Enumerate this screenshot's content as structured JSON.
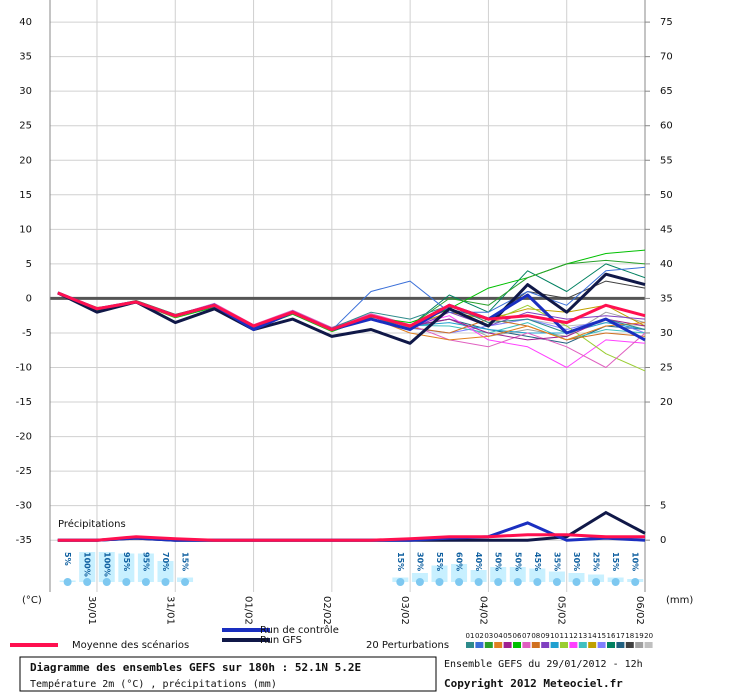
{
  "chart_data": {
    "type": "line",
    "title": "Diagramme des ensembles GEFS sur 180h : 52.1N 5.2E",
    "subtitle": "Température 2m (°C) , précipitations (mm)",
    "run_label": "Ensemble GEFS du 29/01/2012 - 12h",
    "copyright": "Copyright 2012 Meteociel.fr",
    "precip_label": "Précipitations",
    "y_label": "(°C)",
    "y2_label": "(mm)",
    "perturbations_label": "20 Perturbations",
    "x": [
      -0.5,
      0,
      0.5,
      1,
      1.5,
      2,
      2.5,
      3,
      3.5,
      4,
      4.5,
      5,
      5.5,
      6,
      6.5,
      7
    ],
    "xlim": [
      -0.6,
      7
    ],
    "xticks": [
      {
        "value": 0,
        "label": "30/01"
      },
      {
        "value": 1,
        "label": "31/01"
      },
      {
        "value": 2,
        "label": "01/02"
      },
      {
        "value": 3,
        "label": "02/02"
      },
      {
        "value": 4,
        "label": "03/02"
      },
      {
        "value": 5,
        "label": "04/02"
      },
      {
        "value": 6,
        "label": "05/02"
      },
      {
        "value": 7,
        "label": "06/02"
      }
    ],
    "ylim": [
      -42.5,
      43.2
    ],
    "yticks": [
      40,
      35,
      30,
      25,
      20,
      15,
      10,
      5,
      0,
      -5,
      -10,
      -15,
      -20,
      -25,
      -30,
      -35
    ],
    "y2lim": [
      -7.5,
      78.2
    ],
    "y2ticks": [
      75,
      70,
      65,
      60,
      55,
      50,
      45,
      40,
      35,
      30,
      25,
      20,
      5,
      0
    ],
    "grid": true,
    "series": [
      {
        "name": "Moyenne des scénarios",
        "color": "#ff1050",
        "values": [
          0.8,
          -1.5,
          -0.5,
          -2.5,
          -1,
          -4,
          -2,
          -4.5,
          -2.5,
          -4,
          -1,
          -3,
          -2.5,
          -3.5,
          -1,
          -2.5
        ],
        "precip_values": [
          0,
          0,
          0.5,
          0.2,
          0,
          0,
          0,
          0,
          0,
          0.2,
          0.5,
          0.5,
          0.8,
          0.8,
          0.5,
          0.5
        ]
      },
      {
        "name": "Run de contrôle",
        "color": "#1a2fc0",
        "values": [
          0.8,
          -1.5,
          -0.5,
          -2.5,
          -1,
          -4.5,
          -2,
          -4.5,
          -3,
          -4.5,
          -1,
          -3,
          0.5,
          -5,
          -3,
          -6
        ],
        "precip_values": [
          0,
          0,
          0.3,
          0,
          0,
          0,
          0,
          0,
          0,
          0,
          0.3,
          0.5,
          2.5,
          0,
          0.3,
          0
        ]
      },
      {
        "name": "Run GFS",
        "color": "#101848",
        "values": [
          0.8,
          -2,
          -0.5,
          -3.5,
          -1.5,
          -4.5,
          -3,
          -5.5,
          -4.5,
          -6.5,
          -1.5,
          -4,
          2,
          -2,
          3.5,
          2
        ],
        "precip_values": [
          0,
          0,
          0.3,
          0,
          0,
          0,
          0,
          0,
          0,
          0,
          0,
          0,
          0,
          0.5,
          4,
          1
        ]
      },
      {
        "name": "01",
        "color": "#2e8b8b",
        "values": [
          0.8,
          -1.4,
          -0.6,
          -2.4,
          -1.2,
          -4.1,
          -2.1,
          -4.3,
          -2,
          -3,
          -1,
          -3.5,
          -3,
          -5,
          -3,
          -4.5
        ]
      },
      {
        "name": "02",
        "color": "#3a6fd8",
        "values": [
          0.8,
          -1.6,
          -0.4,
          -2.6,
          -0.8,
          -4.2,
          -1.8,
          -4.6,
          1,
          2.5,
          -2,
          -2,
          1,
          -1,
          4,
          4.5
        ]
      },
      {
        "name": "03",
        "color": "#2aa02a",
        "values": [
          0.8,
          -1.5,
          -0.3,
          -2.3,
          -0.9,
          -3.9,
          -1.9,
          -4.4,
          -3,
          -4,
          0,
          -1,
          3,
          5,
          5.5,
          5
        ]
      },
      {
        "name": "04",
        "color": "#e08020",
        "values": [
          0.8,
          -1.3,
          -0.7,
          -2.7,
          -1.1,
          -4.3,
          -2.2,
          -4.7,
          -2.8,
          -5,
          -6,
          -5.5,
          -4,
          -6,
          -4,
          -3.5
        ]
      },
      {
        "name": "05",
        "color": "#a02090",
        "values": [
          0.8,
          -1.5,
          -0.5,
          -2.5,
          -1,
          -4,
          -2,
          -4.5,
          -2.5,
          -4,
          -3,
          -5,
          -6,
          -5.5,
          -3,
          -4
        ]
      },
      {
        "name": "06",
        "color": "#00c000",
        "values": [
          0.8,
          -1.7,
          -0.6,
          -2.8,
          -1.3,
          -4.4,
          -2.3,
          -4.8,
          -2.7,
          -3.5,
          -1.5,
          1.5,
          3,
          5,
          6.5,
          7
        ]
      },
      {
        "name": "07",
        "color": "#e060c0",
        "values": [
          0.8,
          -1.4,
          -0.4,
          -2.4,
          -0.7,
          -3.8,
          -1.7,
          -4.2,
          -2.2,
          -3.8,
          -6,
          -7,
          -5,
          -7,
          -10,
          -5
        ]
      },
      {
        "name": "08",
        "color": "#d07020",
        "values": [
          0.8,
          -1.5,
          -0.5,
          -2.5,
          -1,
          -4,
          -2,
          -4.5,
          -2.5,
          -4.2,
          -5,
          -3,
          -4,
          -6,
          -5,
          -5.5
        ]
      },
      {
        "name": "09",
        "color": "#8040c0",
        "values": [
          0.8,
          -1.6,
          -0.5,
          -2.6,
          -1,
          -4.1,
          -2.1,
          -4.6,
          -2.6,
          -4.5,
          -2,
          -4,
          -2,
          -3,
          -2.5,
          -3
        ]
      },
      {
        "name": "10",
        "color": "#20a0d0",
        "values": [
          0.8,
          -1.5,
          -0.6,
          -2.5,
          -1.1,
          -4,
          -2,
          -4.4,
          -2.4,
          -4,
          -3.5,
          -4.5,
          -5,
          -5,
          -3.5,
          -4.5
        ]
      },
      {
        "name": "11",
        "color": "#9acd32",
        "values": [
          0.8,
          -1.4,
          -0.5,
          -2.5,
          -1,
          -4,
          -2,
          -4.5,
          -2.5,
          -4.1,
          -1,
          -3.5,
          -1,
          -4,
          -8,
          -10.5
        ]
      },
      {
        "name": "12",
        "color": "#ff40ff",
        "values": [
          0.8,
          -1.5,
          -0.5,
          -2.5,
          -1,
          -4,
          -2,
          -4.5,
          -2.5,
          -4,
          -2.5,
          -6,
          -7,
          -10,
          -6,
          -6.5
        ]
      },
      {
        "name": "13",
        "color": "#40c0c0",
        "values": [
          0.8,
          -1.5,
          -0.4,
          -2.6,
          -1,
          -4,
          -2,
          -4.5,
          -2.5,
          -3.9,
          -4,
          -5,
          -3.5,
          -6,
          -4.5,
          -5
        ]
      },
      {
        "name": "14",
        "color": "#c0a000",
        "values": [
          0.8,
          -1.5,
          -0.5,
          -2.5,
          -1,
          -4,
          -2,
          -4.5,
          -2.5,
          -4,
          -2,
          -3,
          -1.5,
          -2,
          -1,
          -4
        ]
      },
      {
        "name": "15",
        "color": "#8080ff",
        "values": [
          0.8,
          -1.6,
          -0.6,
          -2.6,
          -1.2,
          -4.2,
          -2.2,
          -4.6,
          -2.6,
          -4.3,
          -5,
          -4,
          -3,
          -4.5,
          -3,
          -5
        ]
      },
      {
        "name": "16",
        "color": "#008060",
        "values": [
          0.8,
          -1.5,
          -0.5,
          -2.5,
          -1,
          -4,
          -2,
          -4.5,
          -2.5,
          -4,
          0.5,
          -2,
          4,
          1,
          5,
          3
        ]
      },
      {
        "name": "17",
        "color": "#206080",
        "values": [
          0.8,
          -1.4,
          -0.5,
          -2.4,
          -1,
          -3.9,
          -1.9,
          -4.4,
          -2.4,
          -4,
          -3,
          -4.5,
          -5.5,
          -6.5,
          -4,
          -4.5
        ]
      },
      {
        "name": "18",
        "color": "#404040",
        "values": [
          0.8,
          -1.5,
          -0.5,
          -2.5,
          -1,
          -4,
          -2,
          -4.5,
          -2.5,
          -4,
          -1.5,
          -3,
          1,
          0,
          2.5,
          1.5
        ]
      },
      {
        "name": "19",
        "color": "#a0a0a0",
        "values": [
          0.8,
          -1.5,
          -0.5,
          -2.5,
          -1,
          -4,
          -2,
          -4.5,
          -2.5,
          -4.2,
          -3,
          -5.5,
          -4.5,
          -5.5,
          -2,
          -3.5
        ]
      },
      {
        "name": "20",
        "color": "#c0c0c0",
        "values": [
          0.8,
          -1.6,
          -0.5,
          -2.5,
          -1,
          -4,
          -2,
          -4.5,
          -2.5,
          -4.1,
          -2,
          -4,
          -3,
          -4,
          -3.5,
          -4
        ]
      }
    ],
    "snow": {
      "x": [
        -0.375,
        -0.125,
        0.125,
        0.375,
        0.625,
        0.875,
        1.125,
        3.875,
        4.125,
        4.375,
        4.625,
        4.875,
        5.125,
        5.375,
        5.625,
        5.875,
        6.125,
        6.375,
        6.625,
        6.875
      ],
      "values": [
        5,
        100,
        100,
        95,
        95,
        70,
        15,
        15,
        30,
        55,
        60,
        40,
        50,
        50,
        45,
        35,
        30,
        25,
        15,
        10
      ],
      "value_labels": [
        "5%",
        "100%",
        "100%",
        "95%",
        "95%",
        "70%",
        "15%",
        "15%",
        "30%",
        "55%",
        "60%",
        "40%",
        "50%",
        "50%",
        "45%",
        "35%",
        "30%",
        "25%",
        "15%",
        "10%"
      ]
    }
  }
}
